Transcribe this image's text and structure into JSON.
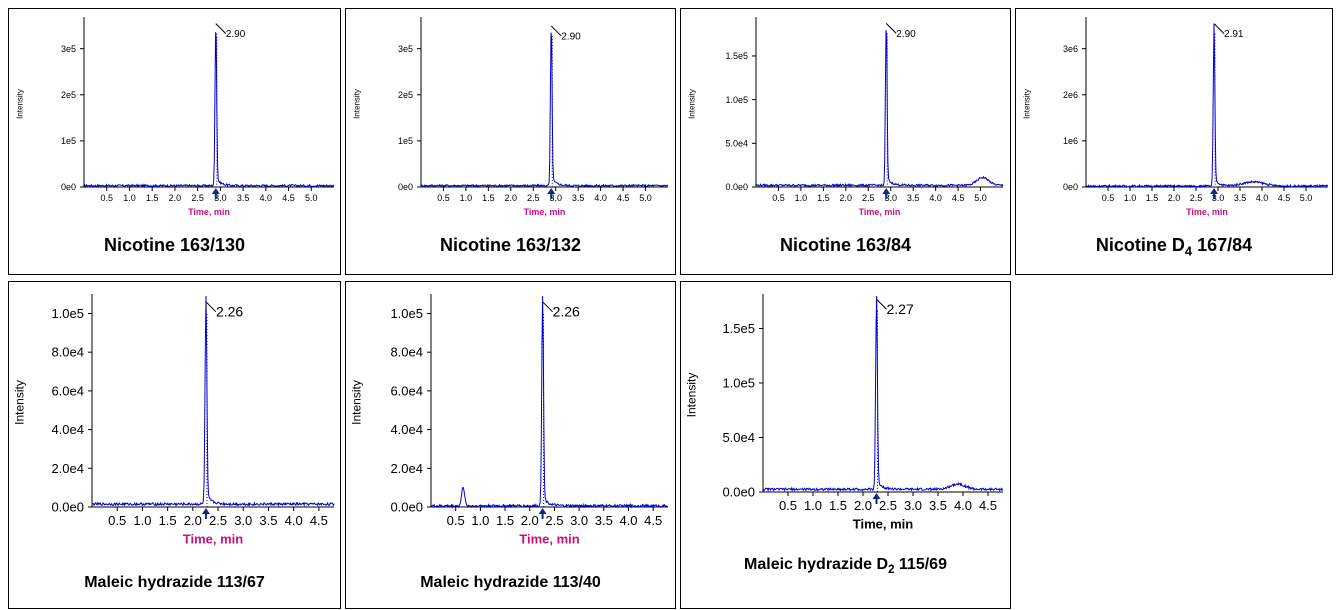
{
  "chart_data": [
    {
      "type": "line",
      "caption": "Nicotine 163/130",
      "xlabel": "Time, min",
      "ylabel": "Intensity",
      "xlim": [
        0,
        5.5
      ],
      "ylim": [
        0,
        360000
      ],
      "xticks": [
        "0.5",
        "1.0",
        "1.5",
        "2.0",
        "2.5",
        "3.0",
        "3.5",
        "4.0",
        "4.5",
        "5.0"
      ],
      "yticks": [
        {
          "value": 0,
          "label": "0e0"
        },
        {
          "value": 100000,
          "label": "1e5"
        },
        {
          "value": 200000,
          "label": "2e5"
        },
        {
          "value": 300000,
          "label": "3e5"
        }
      ],
      "peak": {
        "time": 2.9,
        "label": "2.90",
        "height": 350000
      },
      "baseline": 3000,
      "bumps": []
    },
    {
      "type": "line",
      "caption": "Nicotine 163/132",
      "xlabel": "Time, min",
      "ylabel": "Intensity",
      "xlim": [
        0,
        5.5
      ],
      "ylim": [
        0,
        360000
      ],
      "xticks": [
        "0.5",
        "1.0",
        "1.5",
        "2.0",
        "2.5",
        "3.0",
        "3.5",
        "4.0",
        "4.5",
        "5.0"
      ],
      "yticks": [
        {
          "value": 0,
          "label": "0e0"
        },
        {
          "value": 100000,
          "label": "1e5"
        },
        {
          "value": 200000,
          "label": "2e5"
        },
        {
          "value": 300000,
          "label": "3e5"
        }
      ],
      "peak": {
        "time": 2.9,
        "label": "2.90",
        "height": 345000
      },
      "baseline": 3000,
      "bumps": []
    },
    {
      "type": "line",
      "caption": "Nicotine 163/84",
      "xlabel": "Time, min",
      "ylabel": "Intensity",
      "xlim": [
        0,
        5.5
      ],
      "ylim": [
        0,
        190000
      ],
      "xticks": [
        "0.5",
        "1.0",
        "1.5",
        "2.0",
        "2.5",
        "3.0",
        "3.5",
        "4.0",
        "4.5",
        "5.0"
      ],
      "yticks": [
        {
          "value": 0,
          "label": "0.0e0"
        },
        {
          "value": 50000,
          "label": "5.0e4"
        },
        {
          "value": 100000,
          "label": "1.0e5"
        },
        {
          "value": 150000,
          "label": "1.5e5"
        }
      ],
      "peak": {
        "time": 2.9,
        "label": "2.90",
        "height": 185000
      },
      "baseline": 2000,
      "bumps": [
        {
          "time": 5.05,
          "height": 9000,
          "width": 0.18
        }
      ]
    },
    {
      "type": "line",
      "caption_main": "Nicotine D",
      "caption_sub": "4",
      "caption_rest": " 167/84",
      "xlabel": "Time, min",
      "ylabel": "Intensity",
      "xlim": [
        0,
        5.5
      ],
      "ylim": [
        0,
        3600000
      ],
      "xticks": [
        "0.5",
        "1.0",
        "1.5",
        "2.0",
        "2.5",
        "3.0",
        "3.5",
        "4.0",
        "4.5",
        "5.0"
      ],
      "yticks": [
        {
          "value": 0,
          "label": "0e0"
        },
        {
          "value": 1000000,
          "label": "1e6"
        },
        {
          "value": 2000000,
          "label": "2e6"
        },
        {
          "value": 3000000,
          "label": "3e6"
        }
      ],
      "peak": {
        "time": 2.91,
        "label": "2.91",
        "height": 3500000
      },
      "baseline": 20000,
      "bumps": [
        {
          "time": 3.8,
          "height": 90000,
          "width": 0.35
        }
      ]
    },
    {
      "type": "line",
      "caption": "Maleic hydrazide 113/67",
      "xlabel": "Time, min",
      "ylabel": "Intensity",
      "xlim": [
        0,
        4.8
      ],
      "ylim": [
        0,
        108000
      ],
      "xticks": [
        "0.5",
        "1.0",
        "1.5",
        "2.0",
        "2.5",
        "3.0",
        "3.5",
        "4.0",
        "4.5"
      ],
      "yticks": [
        {
          "value": 0,
          "label": "0.0e0"
        },
        {
          "value": 20000,
          "label": "2.0e4"
        },
        {
          "value": 40000,
          "label": "4.0e4"
        },
        {
          "value": 60000,
          "label": "6.0e4"
        },
        {
          "value": 80000,
          "label": "8.0e4"
        },
        {
          "value": 100000,
          "label": "1.0e5"
        }
      ],
      "peak": {
        "time": 2.26,
        "label": "2.26",
        "height": 105000
      },
      "baseline": 1500,
      "bumps": []
    },
    {
      "type": "line",
      "caption": "Maleic hydrazide 113/40",
      "xlabel": "Time, min",
      "ylabel": "Intensity",
      "xlim": [
        0,
        4.8
      ],
      "ylim": [
        0,
        108000
      ],
      "xticks": [
        "0.5",
        "1.0",
        "1.5",
        "2.0",
        "2.5",
        "3.0",
        "3.5",
        "4.0",
        "4.5"
      ],
      "yticks": [
        {
          "value": 0,
          "label": "0.0e0"
        },
        {
          "value": 20000,
          "label": "2.0e4"
        },
        {
          "value": 40000,
          "label": "4.0e4"
        },
        {
          "value": 60000,
          "label": "6.0e4"
        },
        {
          "value": 80000,
          "label": "8.0e4"
        },
        {
          "value": 100000,
          "label": "1.0e5"
        }
      ],
      "peak": {
        "time": 2.26,
        "label": "2.26",
        "height": 105000
      },
      "baseline": 600,
      "bumps": [
        {
          "time": 0.65,
          "height": 10000,
          "width": 0.04
        }
      ]
    },
    {
      "type": "line",
      "caption_main": "Maleic hydrazide D",
      "caption_sub": "2",
      "caption_rest": " 115/69",
      "xlabel": "Time, min",
      "ylabel": "Intensity",
      "xlim": [
        0,
        4.8
      ],
      "ylim": [
        0,
        178000
      ],
      "xticks": [
        "0.5",
        "1.0",
        "1.5",
        "2.0",
        "2.5",
        "3.0",
        "3.5",
        "4.0",
        "4.5"
      ],
      "yticks": [
        {
          "value": 0,
          "label": "0.0e0"
        },
        {
          "value": 50000,
          "label": "5.0e4"
        },
        {
          "value": 100000,
          "label": "1.0e5"
        },
        {
          "value": 150000,
          "label": "1.5e5"
        }
      ],
      "peak": {
        "time": 2.27,
        "label": "2.27",
        "height": 175000
      },
      "baseline": 2500,
      "bumps": [
        {
          "time": 3.9,
          "height": 5000,
          "width": 0.2
        }
      ]
    }
  ]
}
